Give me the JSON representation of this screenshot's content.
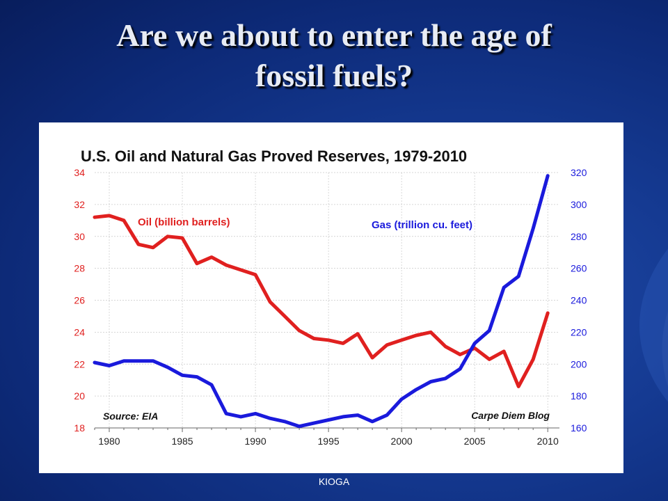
{
  "slide": {
    "title_line1": "Are we about to enter the age of",
    "title_line2": "fossil fuels?",
    "footer": "KIOGA"
  },
  "chart_data": {
    "type": "line",
    "title": "U.S. Oil and Natural Gas Proved Reserves, 1979-2010",
    "x": [
      1979,
      1980,
      1981,
      1982,
      1983,
      1984,
      1985,
      1986,
      1987,
      1988,
      1989,
      1990,
      1991,
      1992,
      1993,
      1994,
      1995,
      1996,
      1997,
      1998,
      1999,
      2000,
      2001,
      2002,
      2003,
      2004,
      2005,
      2006,
      2007,
      2008,
      2009,
      2010
    ],
    "x_ticks": [
      1980,
      1985,
      1990,
      1995,
      2000,
      2005,
      2010
    ],
    "xlim": [
      1979,
      2010.8
    ],
    "series": [
      {
        "name": "Oil (billion barrels)",
        "axis": "left",
        "color": "#e0201f",
        "values": [
          31.2,
          31.3,
          31.0,
          29.5,
          29.3,
          30.0,
          29.9,
          28.3,
          28.7,
          28.2,
          27.9,
          27.6,
          25.9,
          25.0,
          24.1,
          23.6,
          23.5,
          23.3,
          23.9,
          22.4,
          23.2,
          23.5,
          23.8,
          24.0,
          23.1,
          22.6,
          23.0,
          22.3,
          22.8,
          20.6,
          22.3,
          25.2
        ]
      },
      {
        "name": "Gas (trillion cu. feet)",
        "axis": "right",
        "color": "#1a1adc",
        "values": [
          201,
          199,
          202,
          202,
          202,
          198,
          193,
          192,
          187,
          169,
          167,
          169,
          166,
          164,
          161,
          163,
          165,
          167,
          168,
          164,
          168,
          178,
          184,
          189,
          191,
          197,
          213,
          221,
          248,
          255,
          285,
          318
        ]
      }
    ],
    "y_left": {
      "lim": [
        18,
        34
      ],
      "ticks": [
        18,
        20,
        22,
        24,
        26,
        28,
        30,
        32,
        34
      ]
    },
    "y_right": {
      "lim": [
        160,
        320
      ],
      "ticks": [
        160,
        180,
        200,
        220,
        240,
        260,
        280,
        300,
        320
      ]
    },
    "grid": true,
    "annotations": {
      "source": "Source: EIA",
      "credit": "Carpe Diem Blog"
    },
    "colors": {
      "left_axis": "#e0201f",
      "right_axis": "#1a1adc"
    }
  }
}
